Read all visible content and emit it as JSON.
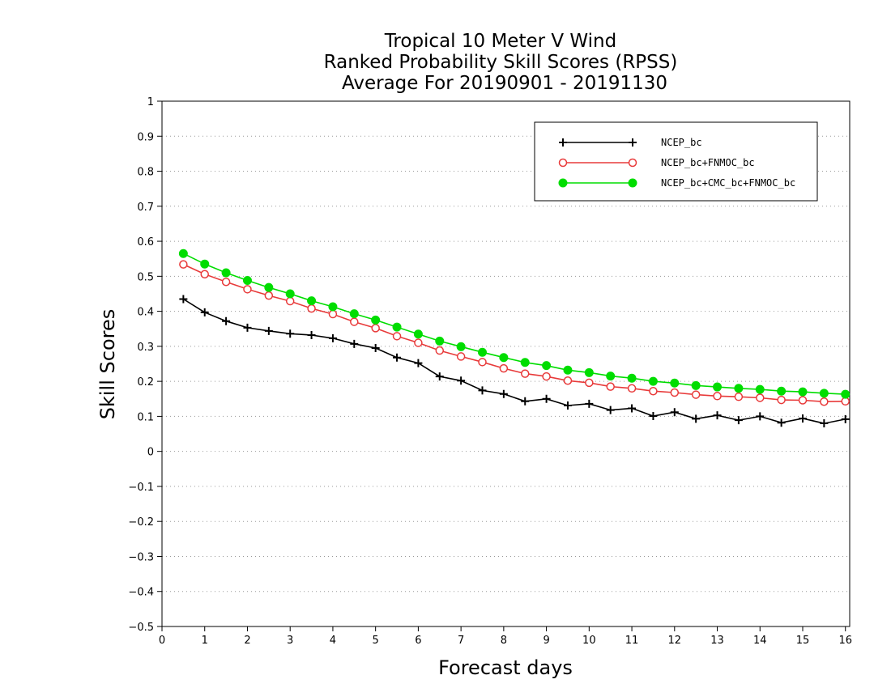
{
  "chart_data": {
    "type": "line",
    "title": [
      "Tropical 10 Meter V Wind",
      "Ranked Probability Skill Scores (RPSS)",
      "Average For 20190901 - 20191130"
    ],
    "xlabel": "Forecast days",
    "ylabel": "Skill Scores",
    "xlim": [
      0,
      16.1
    ],
    "ylim": [
      -0.5,
      1
    ],
    "xticks": [
      0,
      1,
      2,
      3,
      4,
      5,
      6,
      7,
      8,
      9,
      10,
      11,
      12,
      13,
      14,
      15,
      16
    ],
    "yticks": [
      -0.5,
      -0.4,
      -0.3,
      -0.2,
      -0.1,
      0,
      0.1,
      0.2,
      0.3,
      0.4,
      0.5,
      0.6,
      0.7,
      0.8,
      0.9,
      1
    ],
    "ytick_labels": [
      "−0.5",
      "−0.4",
      "−0.3",
      "−0.2",
      "−0.1",
      "0",
      "0.1",
      "0.2",
      "0.3",
      "0.4",
      "0.5",
      "0.6",
      "0.7",
      "0.8",
      "0.9",
      "1"
    ],
    "grid": true,
    "legend_position": "top-right",
    "x": [
      0.5,
      1,
      1.5,
      2,
      2.5,
      3,
      3.5,
      4,
      4.5,
      5,
      5.5,
      6,
      6.5,
      7,
      7.5,
      8,
      8.5,
      9,
      9.5,
      10,
      10.5,
      11,
      11.5,
      12,
      12.5,
      13,
      13.5,
      14,
      14.5,
      15,
      15.5,
      16
    ],
    "series": [
      {
        "name": "NCEP_bc",
        "color": "#000000",
        "marker": "plus",
        "values": [
          0.435,
          0.397,
          0.372,
          0.353,
          0.344,
          0.336,
          0.332,
          0.323,
          0.307,
          0.295,
          0.268,
          0.252,
          0.214,
          0.202,
          0.174,
          0.164,
          0.143,
          0.15,
          0.131,
          0.136,
          0.118,
          0.123,
          0.101,
          0.112,
          0.093,
          0.103,
          0.089,
          0.1,
          0.082,
          0.094,
          0.08,
          0.092
        ]
      },
      {
        "name": "NCEP_bc+FNMOC_bc",
        "color": "#e83a3a",
        "marker": "open-circle",
        "values": [
          0.534,
          0.506,
          0.484,
          0.463,
          0.445,
          0.429,
          0.408,
          0.392,
          0.37,
          0.352,
          0.329,
          0.31,
          0.288,
          0.271,
          0.255,
          0.237,
          0.222,
          0.214,
          0.202,
          0.196,
          0.185,
          0.18,
          0.172,
          0.168,
          0.162,
          0.158,
          0.156,
          0.153,
          0.147,
          0.146,
          0.142,
          0.143
        ]
      },
      {
        "name": "NCEP_bc+CMC_bc+FNMOC_bc",
        "color": "#00dd00",
        "marker": "filled-circle",
        "values": [
          0.565,
          0.535,
          0.51,
          0.488,
          0.468,
          0.45,
          0.43,
          0.413,
          0.393,
          0.375,
          0.355,
          0.335,
          0.315,
          0.299,
          0.283,
          0.268,
          0.254,
          0.245,
          0.232,
          0.225,
          0.215,
          0.209,
          0.2,
          0.195,
          0.188,
          0.184,
          0.18,
          0.177,
          0.172,
          0.17,
          0.166,
          0.163
        ]
      }
    ]
  }
}
